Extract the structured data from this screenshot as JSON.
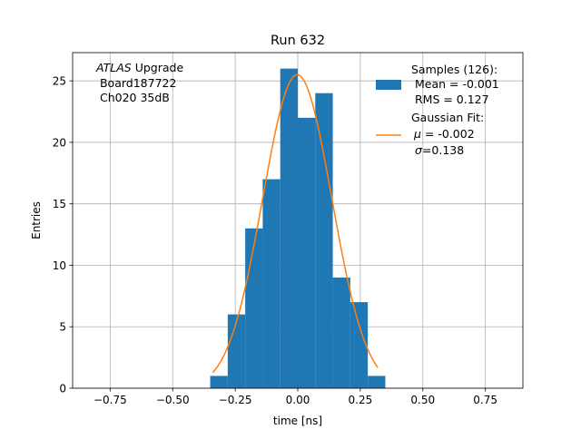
{
  "chart_data": {
    "type": "bar",
    "title": "Run 632",
    "xlabel": "time [ns]",
    "ylabel": "Entries",
    "xlim": [
      -0.9,
      0.9
    ],
    "ylim": [
      0,
      27.3
    ],
    "grid": true,
    "x_ticks": [
      -0.75,
      -0.5,
      -0.25,
      0,
      0.25,
      0.5,
      0.75
    ],
    "x_tick_labels": [
      "−0.75",
      "−0.50",
      "−0.25",
      "0.00",
      "0.25",
      "0.50",
      "0.75"
    ],
    "y_ticks": [
      0,
      5,
      10,
      15,
      20,
      25
    ],
    "y_tick_labels": [
      "0",
      "5",
      "10",
      "15",
      "20",
      "25"
    ],
    "histogram": {
      "bin_edges": [
        -0.35,
        -0.28,
        -0.21,
        -0.14,
        -0.07,
        0.0,
        0.07,
        0.14,
        0.21,
        0.28,
        0.35
      ],
      "counts": [
        1,
        6,
        13,
        17,
        26,
        22,
        24,
        9,
        7,
        1
      ],
      "color": "#1f77b4"
    },
    "gaussian_fit": {
      "amplitude": 25.5,
      "mu": -0.002,
      "sigma": 0.138,
      "x_range": [
        -0.34,
        0.32
      ],
      "color": "#ff7f0e"
    },
    "annotation": {
      "line1_italic": "ATLAS",
      "line1_rest": " Upgrade",
      "line2": " Board187722",
      "line3": " Ch020 35dB"
    },
    "legend": {
      "placement": "top-right",
      "samples_line1": "Samples (126):",
      "samples_line2": " Mean = -0.001",
      "samples_line3": " RMS = 0.127",
      "fit_line1": "Gaussian Fit:",
      "fit_line2_symbol": "μ",
      "fit_line2_rest": " = -0.002",
      "fit_line3_symbol": "σ",
      "fit_line3_rest": "=0.138"
    }
  }
}
